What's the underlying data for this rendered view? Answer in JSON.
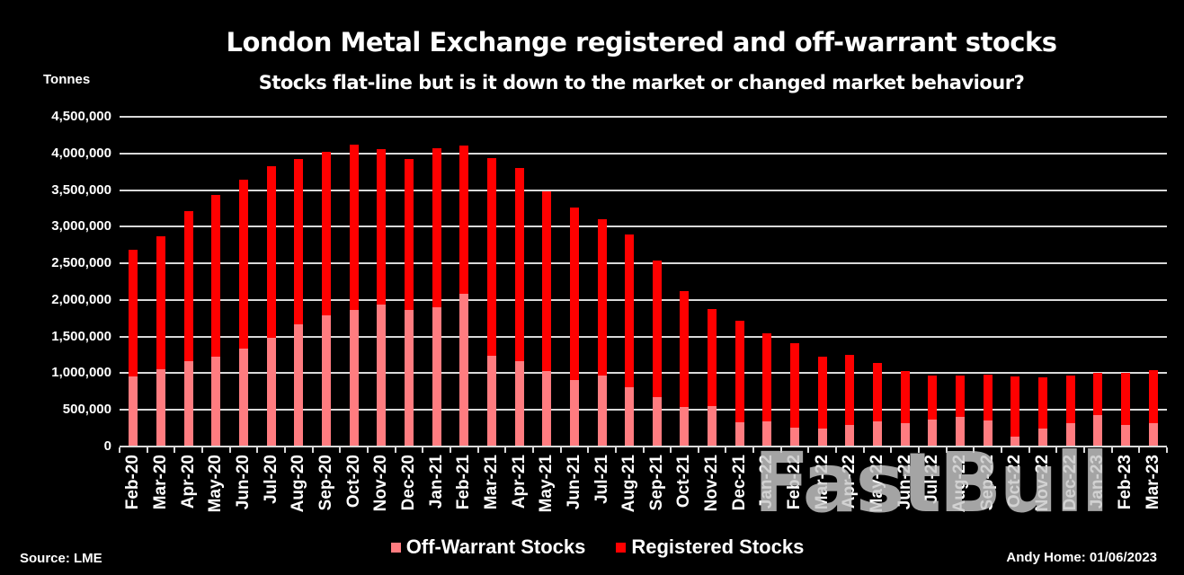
{
  "header": {
    "title": "London Metal Exchange registered and off-warrant stocks",
    "subtitle": "Stocks flat-line but is it down to the market or changed market behaviour?",
    "y_unit": "Tonnes"
  },
  "footer": {
    "source": "Source: LME",
    "credit": "Andy Home: 01/06/2023"
  },
  "watermark": "FastBull",
  "colors": {
    "background": "#000000",
    "off_warrant": "#ff7c80",
    "registered": "#ff0000",
    "gridline": "#d9d9d9",
    "text": "#ffffff"
  },
  "legend": [
    {
      "label": "Off-Warrant Stocks",
      "color": "#ff7c80"
    },
    {
      "label": "Registered Stocks",
      "color": "#ff0000"
    }
  ],
  "y_ticks": [
    "4,500,000",
    "4,000,000",
    "3,500,000",
    "3,000,000",
    "2,500,000",
    "2,000,000",
    "1,500,000",
    "1,000,000",
    "500,000",
    "0"
  ],
  "chart_data": {
    "type": "bar",
    "stacked": true,
    "title": "London Metal Exchange registered and off-warrant stocks",
    "subtitle": "Stocks flat-line but is it down to the market or changed market behaviour?",
    "xlabel": "",
    "ylabel": "Tonnes",
    "ylim": [
      0,
      4500000
    ],
    "y_tick_step": 500000,
    "grid": true,
    "legend_position": "bottom",
    "categories": [
      "Feb-20",
      "Mar-20",
      "Apr-20",
      "May-20",
      "Jun-20",
      "Jul-20",
      "Aug-20",
      "Sep-20",
      "Oct-20",
      "Nov-20",
      "Dec-20",
      "Jan-21",
      "Feb-21",
      "Mar-21",
      "Apr-21",
      "May-21",
      "Jun-21",
      "Jul-21",
      "Aug-21",
      "Sep-21",
      "Oct-21",
      "Nov-21",
      "Dec-21",
      "Jan-22",
      "Feb-22",
      "Mar-22",
      "Apr-22",
      "May-22",
      "Jun-22",
      "Jul-22",
      "Aug-22",
      "Sep-22",
      "Oct-22",
      "Nov-22",
      "Dec-22",
      "Jan-23",
      "Feb-23",
      "Mar-23"
    ],
    "series": [
      {
        "name": "Off-Warrant Stocks",
        "color": "#ff7c80",
        "values": [
          960000,
          1060000,
          1160000,
          1225000,
          1335000,
          1480000,
          1665000,
          1795000,
          1870000,
          1940000,
          1870000,
          1905000,
          2080000,
          1235000,
          1165000,
          1030000,
          905000,
          965000,
          805000,
          670000,
          545000,
          555000,
          335000,
          345000,
          255000,
          240000,
          300000,
          345000,
          325000,
          370000,
          400000,
          360000,
          130000,
          245000,
          325000,
          435000,
          290000,
          325000
        ]
      },
      {
        "name": "Registered Stocks",
        "color": "#ff0000",
        "values": [
          1720000,
          1810000,
          2055000,
          2205000,
          2310000,
          2340000,
          2260000,
          2230000,
          2250000,
          2120000,
          2050000,
          2165000,
          2030000,
          2700000,
          2640000,
          2455000,
          2360000,
          2135000,
          2090000,
          1870000,
          1575000,
          1325000,
          1385000,
          1195000,
          1155000,
          990000,
          945000,
          800000,
          700000,
          605000,
          575000,
          615000,
          830000,
          700000,
          645000,
          565000,
          720000,
          715000
        ]
      }
    ],
    "totals": [
      2680000,
      2870000,
      3215000,
      3430000,
      3645000,
      3820000,
      3925000,
      4025000,
      4120000,
      4060000,
      3920000,
      4070000,
      4110000,
      3935000,
      3805000,
      3485000,
      3265000,
      3100000,
      2895000,
      2540000,
      2120000,
      1880000,
      1720000,
      1540000,
      1410000,
      1230000,
      1245000,
      1145000,
      1025000,
      975000,
      975000,
      975000,
      960000,
      945000,
      970000,
      1000000,
      1010000,
      1040000
    ]
  }
}
